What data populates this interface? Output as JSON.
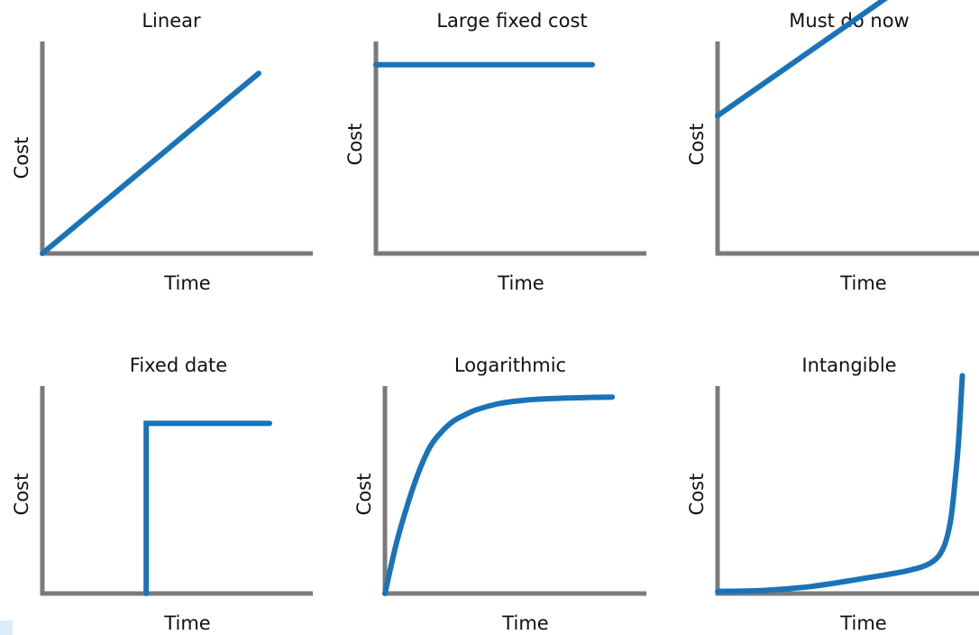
{
  "chart_data": [
    {
      "title": "Linear",
      "type": "line",
      "xlabel": "Time",
      "ylabel": "Cost",
      "x": [
        0,
        10
      ],
      "y": [
        0,
        8.5
      ],
      "xlim": [
        0,
        12.5
      ],
      "ylim": [
        0,
        10
      ],
      "grid": false,
      "color": "#1a73b8"
    },
    {
      "title": "Large fixed cost",
      "type": "line",
      "xlabel": "Time",
      "ylabel": "Cost",
      "x": [
        0,
        10
      ],
      "y": [
        8.9,
        8.9
      ],
      "xlim": [
        0,
        12.5
      ],
      "ylim": [
        0,
        10
      ],
      "grid": false,
      "color": "#1a73b8"
    },
    {
      "title": "Must do now",
      "type": "line",
      "xlabel": "Time",
      "ylabel": "Cost",
      "x": [
        0,
        8.5
      ],
      "y": [
        6.5,
        12.6
      ],
      "xlim": [
        0,
        12
      ],
      "ylim": [
        0,
        10
      ],
      "grid": false,
      "color": "#1a73b8"
    },
    {
      "title": "Fixed date",
      "type": "line",
      "xlabel": "Time",
      "ylabel": "Cost",
      "x": [
        4.8,
        4.8,
        10.5
      ],
      "y": [
        0,
        8.2,
        8.2
      ],
      "xlim": [
        0,
        12.5
      ],
      "ylim": [
        0,
        10
      ],
      "grid": false,
      "color": "#1a73b8"
    },
    {
      "title": "Logarithmic",
      "type": "line",
      "xlabel": "Time",
      "ylabel": "Cost",
      "x": [
        0,
        0.5,
        1,
        1.5,
        2,
        2.5,
        3,
        3.5,
        4,
        5,
        6,
        7,
        8,
        9,
        10
      ],
      "y": [
        0,
        2.4,
        4.3,
        5.9,
        7.1,
        7.8,
        8.3,
        8.6,
        8.85,
        9.15,
        9.3,
        9.38,
        9.42,
        9.45,
        9.47
      ],
      "xlim": [
        0,
        11.5
      ],
      "ylim": [
        0,
        10
      ],
      "grid": false,
      "color": "#1a73b8"
    },
    {
      "title": "Intangible",
      "type": "line",
      "xlabel": "Time",
      "ylabel": "Cost",
      "x": [
        0,
        2,
        4,
        6,
        8,
        9,
        9.5,
        9.8,
        10,
        10.15,
        10.3
      ],
      "y": [
        0.1,
        0.15,
        0.35,
        0.7,
        1.1,
        1.5,
        2.2,
        3.5,
        5.5,
        7.5,
        10.5
      ],
      "xlim": [
        0,
        11
      ],
      "ylim": [
        0,
        10
      ],
      "grid": false,
      "color": "#1a73b8"
    }
  ],
  "colors": {
    "axis": "#7a7a7a",
    "curve": "#1a73b8",
    "text": "#111111"
  }
}
